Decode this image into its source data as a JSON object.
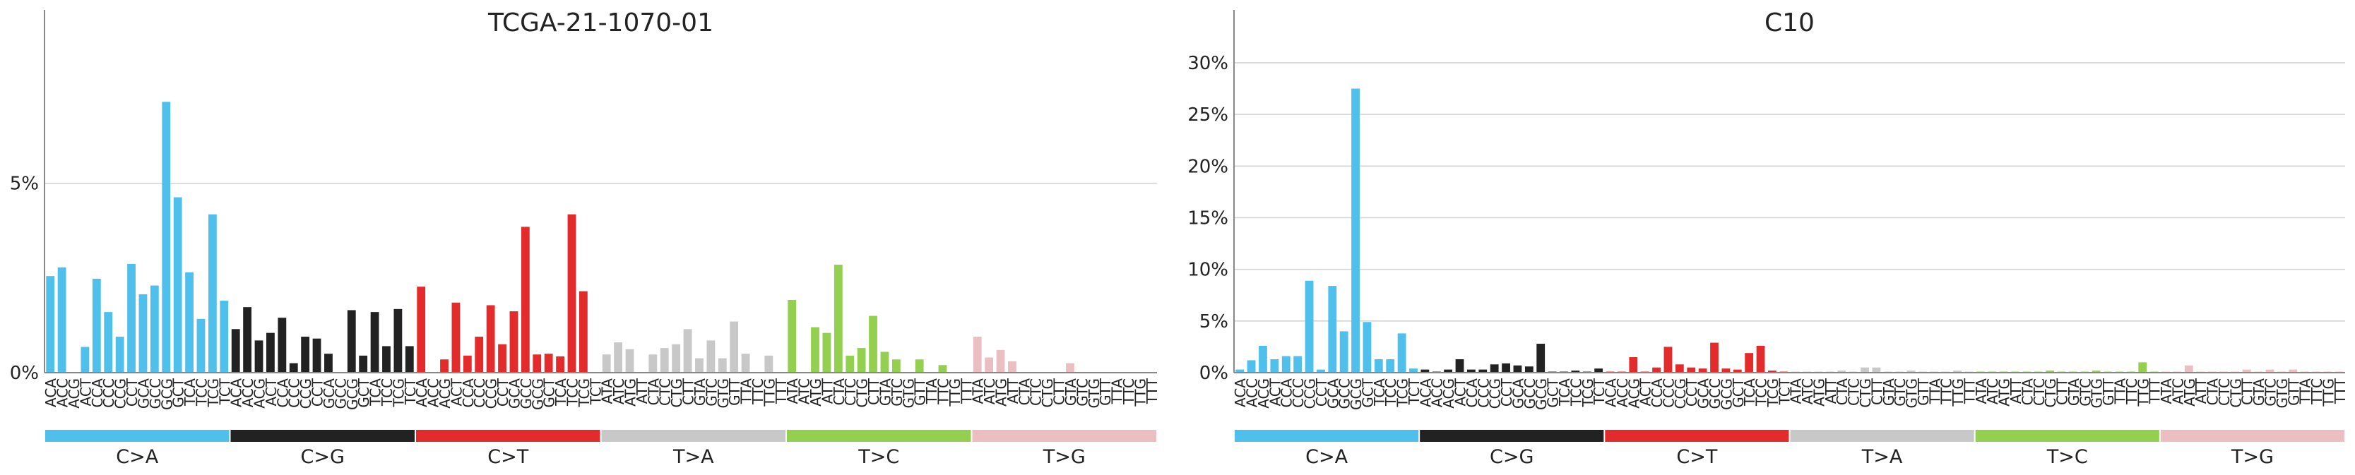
{
  "panels": [
    {
      "title": "TCGA-21-1070-01",
      "yticks": [
        {
          "value": 0,
          "label": "0%"
        },
        {
          "value": 5,
          "label": "5%"
        }
      ]
    },
    {
      "title": "C10",
      "yticks": [
        {
          "value": 0,
          "label": "0%"
        },
        {
          "value": 5,
          "label": "5%"
        },
        {
          "value": 10,
          "label": "10%"
        },
        {
          "value": 15,
          "label": "15%"
        },
        {
          "value": 20,
          "label": "20%"
        },
        {
          "value": 25,
          "label": "25%"
        },
        {
          "value": 30,
          "label": "30%"
        }
      ]
    }
  ],
  "colors": {
    "C>A": "#4fc0ec",
    "C>G": "#222222",
    "C>T": "#e32b2b",
    "T>A": "#c8c8c8",
    "T>C": "#94d050",
    "T>G": "#ebbfc2",
    "grid": "#d3d3d3",
    "axis": "#888888"
  },
  "chart_data": [
    {
      "type": "bar",
      "title": "TCGA-21-1070-01",
      "ylim": [
        0,
        9
      ],
      "yticks": [
        0,
        5
      ],
      "grid": "horizontal",
      "groups": [
        "C>A",
        "C>G",
        "C>T",
        "T>A",
        "T>C",
        "T>G"
      ],
      "categories": [
        "ACA",
        "ACC",
        "ACG",
        "ACT",
        "CCA",
        "CCC",
        "CCG",
        "CCT",
        "GCA",
        "GCC",
        "GCG",
        "GCT",
        "TCA",
        "TCC",
        "TCG",
        "TCT",
        "ACA",
        "ACC",
        "ACG",
        "ACT",
        "CCA",
        "CCC",
        "CCG",
        "CCT",
        "GCA",
        "GCC",
        "GCG",
        "GCT",
        "TCA",
        "TCC",
        "TCG",
        "TCT",
        "ACA",
        "ACC",
        "ACG",
        "ACT",
        "CCA",
        "CCC",
        "CCG",
        "CCT",
        "GCA",
        "GCC",
        "GCG",
        "GCT",
        "TCA",
        "TCC",
        "TCG",
        "TCT",
        "ATA",
        "ATC",
        "ATG",
        "ATT",
        "CTA",
        "CTC",
        "CTG",
        "CTT",
        "GTA",
        "GTC",
        "GTG",
        "GTT",
        "TTA",
        "TTC",
        "TTG",
        "TTT",
        "ATA",
        "ATC",
        "ATG",
        "ATT",
        "CTA",
        "CTC",
        "CTG",
        "CTT",
        "GTA",
        "GTC",
        "GTG",
        "GTT",
        "TTA",
        "TTC",
        "TTG",
        "TTT",
        "ATA",
        "ATC",
        "ATG",
        "ATT",
        "CTA",
        "CTC",
        "CTG",
        "CTT",
        "GTA",
        "GTC",
        "GTG",
        "GTT",
        "TTA",
        "TTC",
        "TTG",
        "TTT"
      ],
      "values": [
        2.55,
        2.78,
        0,
        0.68,
        2.48,
        1.6,
        0.95,
        2.87,
        2.07,
        2.3,
        7.15,
        4.63,
        2.65,
        1.42,
        4.18,
        1.9,
        1.15,
        1.73,
        0.85,
        1.05,
        1.45,
        0.25,
        0.95,
        0.9,
        0.5,
        0,
        1.65,
        0.45,
        1.6,
        0.7,
        1.68,
        0.7,
        2.27,
        0,
        0.35,
        1.85,
        0.45,
        0.95,
        1.78,
        0.75,
        1.62,
        3.85,
        0.48,
        0.5,
        0.43,
        4.18,
        2.15,
        0,
        0.48,
        0.8,
        0.62,
        0,
        0.48,
        0.65,
        0.75,
        1.15,
        0.38,
        0.85,
        0.38,
        1.35,
        0.5,
        0,
        0.45,
        0,
        1.92,
        0,
        1.2,
        1.05,
        2.85,
        0.45,
        0.65,
        1.5,
        0.55,
        0.35,
        0,
        0.35,
        0,
        0.2,
        0,
        0,
        0.95,
        0.4,
        0.6,
        0.3,
        0,
        0,
        0,
        0,
        0.25,
        0,
        0,
        0,
        0,
        0,
        0,
        0
      ]
    },
    {
      "type": "bar",
      "title": "C10",
      "ylim": [
        0,
        33
      ],
      "yticks": [
        0,
        5,
        10,
        15,
        20,
        25,
        30
      ],
      "grid": "horizontal",
      "groups": [
        "C>A",
        "C>G",
        "C>T",
        "T>A",
        "T>C",
        "T>G"
      ],
      "categories": [
        "ACA",
        "ACC",
        "ACG",
        "ACT",
        "CCA",
        "CCC",
        "CCG",
        "CCT",
        "GCA",
        "GCC",
        "GCG",
        "GCT",
        "TCA",
        "TCC",
        "TCG",
        "TCT",
        "ACA",
        "ACC",
        "ACG",
        "ACT",
        "CCA",
        "CCC",
        "CCG",
        "CCT",
        "GCA",
        "GCC",
        "GCG",
        "GCT",
        "TCA",
        "TCC",
        "TCG",
        "TCT",
        "ACA",
        "ACC",
        "ACG",
        "ACT",
        "CCA",
        "CCC",
        "CCG",
        "CCT",
        "GCA",
        "GCC",
        "GCG",
        "GCT",
        "TCA",
        "TCC",
        "TCG",
        "TCT",
        "ATA",
        "ATC",
        "ATG",
        "ATT",
        "CTA",
        "CTC",
        "CTG",
        "CTT",
        "GTA",
        "GTC",
        "GTG",
        "GTT",
        "TTA",
        "TTC",
        "TTG",
        "TTT",
        "ATA",
        "ATC",
        "ATG",
        "ATT",
        "CTA",
        "CTC",
        "CTG",
        "CTT",
        "GTA",
        "GTC",
        "GTG",
        "GTT",
        "TTA",
        "TTC",
        "TTG",
        "TTT",
        "ATA",
        "ATC",
        "ATG",
        "ATT",
        "CTA",
        "CTC",
        "CTG",
        "CTT",
        "GTA",
        "GTC",
        "GTG",
        "GTT",
        "TTA",
        "TTC",
        "TTG",
        "TTT"
      ],
      "values": [
        0.3,
        1.2,
        2.6,
        1.3,
        1.6,
        1.6,
        8.9,
        0.3,
        8.4,
        4.0,
        27.5,
        4.9,
        1.3,
        1.3,
        3.8,
        0.4,
        0.3,
        0.1,
        0.3,
        1.3,
        0.3,
        0.3,
        0.8,
        0.9,
        0.7,
        0.6,
        2.8,
        0.1,
        0.1,
        0.2,
        0.1,
        0.4,
        0.1,
        0.1,
        1.5,
        0.1,
        0.5,
        2.5,
        0.8,
        0.5,
        0.4,
        2.9,
        0.4,
        0.3,
        1.9,
        2.6,
        0.2,
        0.1,
        0.1,
        0.1,
        0.1,
        0.1,
        0.2,
        0.1,
        0.5,
        0.5,
        0.1,
        0.1,
        0.2,
        0.1,
        0.1,
        0.1,
        0.2,
        0.1,
        0.1,
        0.1,
        0.1,
        0.1,
        0.1,
        0.1,
        0.2,
        0.1,
        0.1,
        0.1,
        0.2,
        0.1,
        0.1,
        0.1,
        1.0,
        0.1,
        0.1,
        0.1,
        0.7,
        0.1,
        0.1,
        0.1,
        0.1,
        0.3,
        0.1,
        0.3,
        0.1,
        0.3,
        0.1,
        0.1,
        0.1,
        0.1
      ]
    }
  ]
}
